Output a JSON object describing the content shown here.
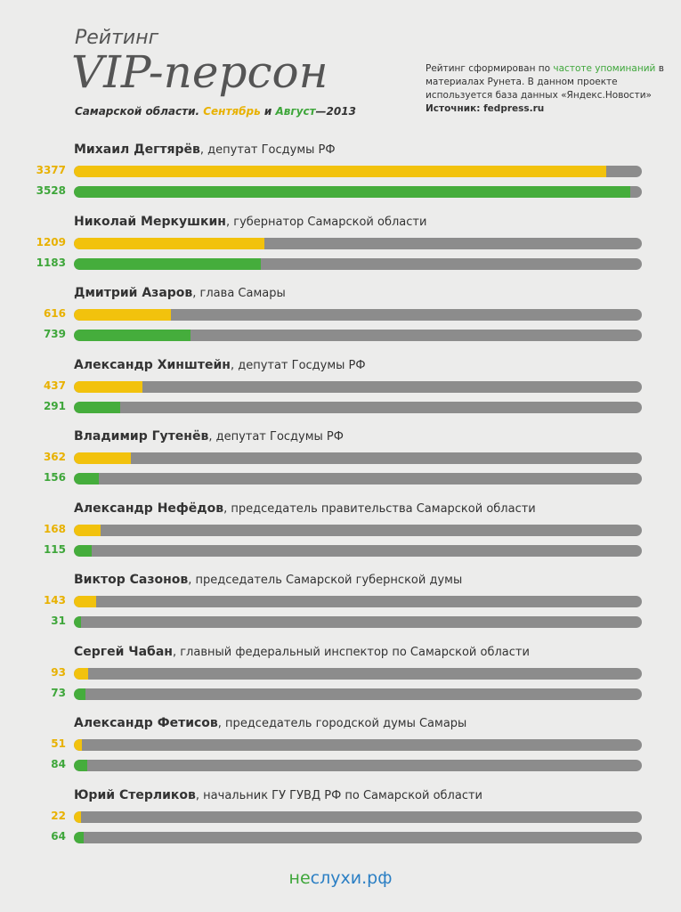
{
  "header": {
    "line1": "Рейтинг",
    "line2": "VIP-персон",
    "subtitle_prefix": "Самарской области.",
    "month1": "Сентябрь",
    "conj": "и",
    "month2": "Август",
    "year": "—2013",
    "info_part1": "Рейтинг сформирован по",
    "info_highlight": "частоте упоминаний",
    "info_part2": "в материалах Рунета. В данном проекте используется база данных «Яндекс.Новости»",
    "source": "Источник: fedpress.ru"
  },
  "colors": {
    "september": "#f2c20d",
    "august": "#45ad3c",
    "track": "#8c8c8c",
    "background": "#ececeb"
  },
  "chart_data": {
    "type": "bar",
    "orientation": "horizontal",
    "max": 3600,
    "series": [
      {
        "name": "Сентябрь",
        "color": "#f2c20d"
      },
      {
        "name": "Август",
        "color": "#45ad3c"
      }
    ],
    "persons": [
      {
        "name": "Михаил Дегтярёв",
        "role": ", депутат Госдумы РФ",
        "sep": 3377,
        "aug": 3528
      },
      {
        "name": "Николай Меркушкин",
        "role": ", губернатор Самарской области",
        "sep": 1209,
        "aug": 1183
      },
      {
        "name": "Дмитрий Азаров",
        "role": ", глава Самары",
        "sep": 616,
        "aug": 739
      },
      {
        "name": "Александр Хинштейн",
        "role": ", депутат Госдумы РФ",
        "sep": 437,
        "aug": 291
      },
      {
        "name": "Владимир Гутенёв",
        "role": ", депутат Госдумы РФ",
        "sep": 362,
        "aug": 156
      },
      {
        "name": "Александр Нефёдов",
        "role": ", председатель правительства Самарской области",
        "sep": 168,
        "aug": 115
      },
      {
        "name": "Виктор Сазонов",
        "role": ", председатель Самарской губернской думы",
        "sep": 143,
        "aug": 31
      },
      {
        "name": "Сергей Чабан",
        "role": ", главный федеральный инспектор по Самарской области",
        "sep": 93,
        "aug": 73
      },
      {
        "name": "Александр Фетисов",
        "role": ", председатель городской думы Самары",
        "sep": 51,
        "aug": 84
      },
      {
        "name": "Юрий Стерликов",
        "role": ", начальник ГУ ГУВД РФ по Самарской области",
        "sep": 22,
        "aug": 64
      }
    ]
  },
  "footer": {
    "logo_part1": "не",
    "logo_part2": "слухи.рф"
  }
}
